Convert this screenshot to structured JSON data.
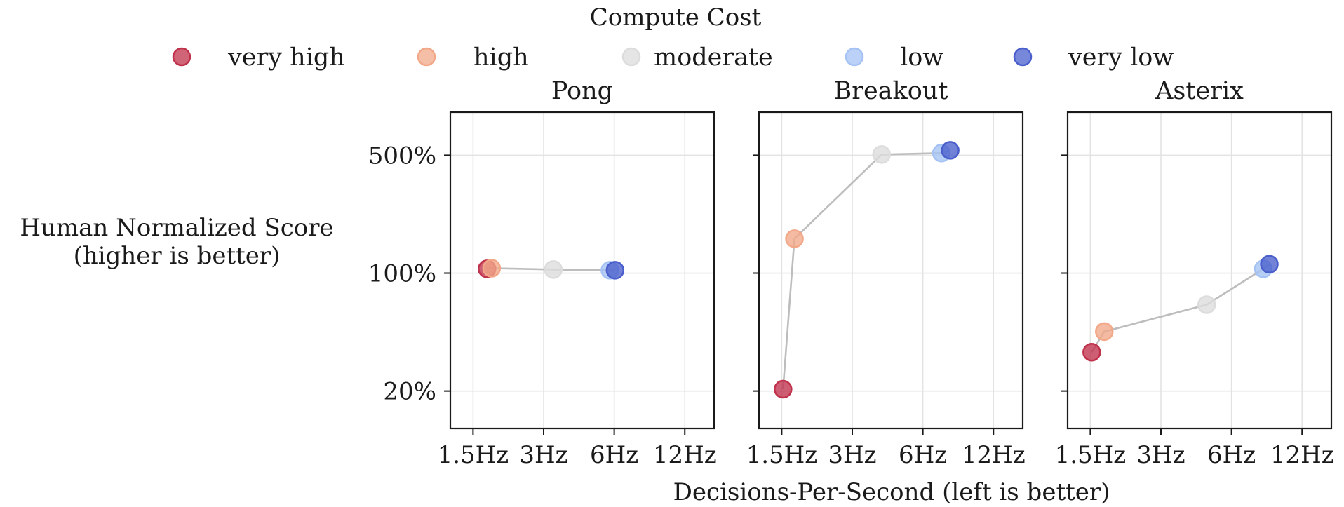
{
  "chart_data": {
    "type": "scatter",
    "legend_title": "Compute Cost",
    "legend_position": "top-center",
    "legend": [
      {
        "label": "very high",
        "color": "#c0314b"
      },
      {
        "label": "high",
        "color": "#f2a888"
      },
      {
        "label": "moderate",
        "color": "#dcdcdc"
      },
      {
        "label": "low",
        "color": "#a4c2f4"
      },
      {
        "label": "very low",
        "color": "#4a5fcc"
      }
    ],
    "xlabel": "Decisions-Per-Second (left is better)",
    "ylabel_lines": [
      "Human Normalized Score",
      "(higher is better)"
    ],
    "x_scale": "log",
    "y_scale": "log",
    "xlim": [
      1.2,
      16
    ],
    "ylim": [
      12,
      900
    ],
    "x_ticks": [
      1.5,
      3,
      6,
      12
    ],
    "x_tick_labels": [
      "1.5Hz",
      "3Hz",
      "6Hz",
      "12Hz"
    ],
    "y_ticks": [
      20,
      100,
      500
    ],
    "y_tick_labels": [
      "20%",
      "100%",
      "500%"
    ],
    "grid": true,
    "panels": [
      {
        "title": "Pong",
        "points": [
          {
            "cost": "very high",
            "x": 1.72,
            "y": 106
          },
          {
            "cost": "high",
            "x": 1.8,
            "y": 107
          },
          {
            "cost": "moderate",
            "x": 3.3,
            "y": 105
          },
          {
            "cost": "low",
            "x": 5.75,
            "y": 104
          },
          {
            "cost": "very low",
            "x": 6.05,
            "y": 104
          }
        ]
      },
      {
        "title": "Breakout",
        "points": [
          {
            "cost": "very high",
            "x": 1.52,
            "y": 20.5
          },
          {
            "cost": "high",
            "x": 1.7,
            "y": 160
          },
          {
            "cost": "moderate",
            "x": 4.0,
            "y": 505
          },
          {
            "cost": "low",
            "x": 7.2,
            "y": 515
          },
          {
            "cost": "very low",
            "x": 7.85,
            "y": 535
          }
        ]
      },
      {
        "title": "Asterix",
        "points": [
          {
            "cost": "very high",
            "x": 1.52,
            "y": 34
          },
          {
            "cost": "high",
            "x": 1.72,
            "y": 45
          },
          {
            "cost": "moderate",
            "x": 4.7,
            "y": 65
          },
          {
            "cost": "low",
            "x": 8.2,
            "y": 106
          },
          {
            "cost": "very low",
            "x": 8.7,
            "y": 113
          }
        ]
      }
    ]
  }
}
